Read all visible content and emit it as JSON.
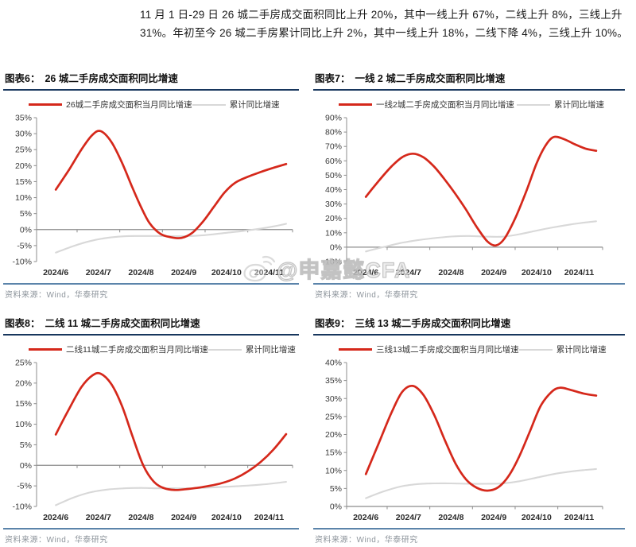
{
  "intro": {
    "text": "11 月 1 日-29 日 26 城二手房成交面积同比上升 20%，其中一线上升 67%，二线上升 8%，三线上升 31%。年初至今 26 城二手房累计同比上升 2%，其中一线上升 18%，二线下降 4%，三线上升 10%。"
  },
  "watermark": {
    "text": "@申嘉懿CFA",
    "icon": "weibo-icon"
  },
  "source_label": "资料来源：Wind，华泰研究",
  "colors": {
    "red": "#d5281b",
    "gray": "#d8d8d8",
    "navy": "#17365d",
    "divider": "#5b84aa",
    "srcgray": "#8e959c",
    "axis": "#8c8c8c",
    "tick_label": "#3a3a3a",
    "x_label": "#2b2b2b"
  },
  "charts": [
    {
      "tag": "图表6：",
      "title": "26 城二手房成交面积同比增速",
      "legend_monthly": "26城二手房成交面积当月同比增速",
      "legend_cumulative": "累计同比增速",
      "chart_data": {
        "type": "line",
        "x_categories": [
          "2024/6",
          "2024/7",
          "2024/8",
          "2024/9",
          "2024/10",
          "2024/11"
        ],
        "ylim": [
          -10,
          35
        ],
        "y_step": 5,
        "y_unit": "%",
        "grid": false,
        "legend_position": "top",
        "series": [
          {
            "name": "26城二手房成交面积当月同比增速",
            "color_key": "red",
            "points": [
              [
                6,
                12.5
              ],
              [
                6.3,
                18.5
              ],
              [
                6.6,
                25
              ],
              [
                6.85,
                29.5
              ],
              [
                7.05,
                30.8
              ],
              [
                7.3,
                27.5
              ],
              [
                7.55,
                21
              ],
              [
                7.8,
                13
              ],
              [
                8.0,
                7
              ],
              [
                8.2,
                2
              ],
              [
                8.45,
                -1.3
              ],
              [
                8.7,
                -2.4
              ],
              [
                8.95,
                -2.6
              ],
              [
                9.2,
                -1
              ],
              [
                9.45,
                2.5
              ],
              [
                9.7,
                7
              ],
              [
                9.95,
                11.5
              ],
              [
                10.2,
                14.6
              ],
              [
                10.5,
                16.5
              ],
              [
                10.8,
                18
              ],
              [
                11.1,
                19.3
              ],
              [
                11.4,
                20.5
              ]
            ]
          },
          {
            "name": "累计同比增速",
            "color_key": "gray",
            "points": [
              [
                6,
                -7.2
              ],
              [
                6.4,
                -5.2
              ],
              [
                6.8,
                -3.6
              ],
              [
                7.2,
                -2.6
              ],
              [
                7.6,
                -2.1
              ],
              [
                8,
                -2
              ],
              [
                8.4,
                -2
              ],
              [
                8.8,
                -2.1
              ],
              [
                9.2,
                -2
              ],
              [
                9.6,
                -1.6
              ],
              [
                10,
                -1
              ],
              [
                10.4,
                -0.4
              ],
              [
                10.8,
                0.3
              ],
              [
                11.1,
                1
              ],
              [
                11.4,
                1.8
              ]
            ]
          }
        ]
      }
    },
    {
      "tag": "图表7：",
      "title": "一线 2 城二手房成交面积同比增速",
      "legend_monthly": "一线2城二手房成交面积当月同比增速",
      "legend_cumulative": "累计同比增速",
      "chart_data": {
        "type": "line",
        "x_categories": [
          "2024/6",
          "2024/7",
          "2024/8",
          "2024/9",
          "2024/10",
          "2024/11"
        ],
        "ylim": [
          -10,
          90
        ],
        "y_step": 10,
        "y_unit": "%",
        "grid": false,
        "legend_position": "top",
        "series": [
          {
            "name": "一线2城二手房成交面积当月同比增速",
            "color_key": "red",
            "points": [
              [
                6,
                35
              ],
              [
                6.3,
                46
              ],
              [
                6.6,
                56
              ],
              [
                6.85,
                62.5
              ],
              [
                7.1,
                65
              ],
              [
                7.35,
                62.5
              ],
              [
                7.6,
                56
              ],
              [
                7.85,
                47
              ],
              [
                8.1,
                37
              ],
              [
                8.35,
                26
              ],
              [
                8.6,
                14
              ],
              [
                8.85,
                4
              ],
              [
                9.05,
                1.2
              ],
              [
                9.25,
                6
              ],
              [
                9.5,
                20
              ],
              [
                9.75,
                38
              ],
              [
                10,
                58
              ],
              [
                10.2,
                70
              ],
              [
                10.4,
                76.5
              ],
              [
                10.65,
                75
              ],
              [
                10.9,
                71.5
              ],
              [
                11.15,
                68.5
              ],
              [
                11.4,
                67
              ]
            ]
          },
          {
            "name": "累计同比增速",
            "color_key": "gray",
            "points": [
              [
                6,
                -3
              ],
              [
                6.4,
                0
              ],
              [
                6.8,
                2.8
              ],
              [
                7.2,
                4.8
              ],
              [
                7.6,
                6.3
              ],
              [
                8,
                7.4
              ],
              [
                8.4,
                7.8
              ],
              [
                8.8,
                7.4
              ],
              [
                9.2,
                7.3
              ],
              [
                9.6,
                9
              ],
              [
                10,
                11.5
              ],
              [
                10.4,
                13.8
              ],
              [
                10.8,
                15.8
              ],
              [
                11.1,
                17
              ],
              [
                11.4,
                18
              ]
            ]
          }
        ]
      }
    },
    {
      "tag": "图表8：",
      "title": "二线 11 城二手房成交面积同比增速",
      "legend_monthly": "二线11城二手房成交面积当月同比增速",
      "legend_cumulative": "累计同比增速",
      "chart_data": {
        "type": "line",
        "x_categories": [
          "2024/6",
          "2024/7",
          "2024/8",
          "2024/9",
          "2024/10",
          "2024/11"
        ],
        "ylim": [
          -10,
          25
        ],
        "y_step": 5,
        "y_unit": "%",
        "grid": false,
        "legend_position": "top",
        "series": [
          {
            "name": "二线11城二手房成交面积当月同比增速",
            "color_key": "red",
            "points": [
              [
                6,
                7.5
              ],
              [
                6.3,
                13.5
              ],
              [
                6.6,
                19
              ],
              [
                6.85,
                21.8
              ],
              [
                7.05,
                22.3
              ],
              [
                7.3,
                19.8
              ],
              [
                7.55,
                14.5
              ],
              [
                7.8,
                7
              ],
              [
                8.05,
                0
              ],
              [
                8.3,
                -4
              ],
              [
                8.55,
                -5.6
              ],
              [
                8.8,
                -6
              ],
              [
                9.05,
                -5.8
              ],
              [
                9.3,
                -5.5
              ],
              [
                9.6,
                -5
              ],
              [
                9.9,
                -4.3
              ],
              [
                10.2,
                -3.2
              ],
              [
                10.5,
                -1.5
              ],
              [
                10.8,
                0.8
              ],
              [
                11.1,
                3.8
              ],
              [
                11.4,
                7.6
              ]
            ]
          },
          {
            "name": "累计同比增速",
            "color_key": "gray",
            "points": [
              [
                6,
                -9.7
              ],
              [
                6.4,
                -7.9
              ],
              [
                6.8,
                -6.6
              ],
              [
                7.2,
                -5.9
              ],
              [
                7.6,
                -5.6
              ],
              [
                8,
                -5.5
              ],
              [
                8.4,
                -5.6
              ],
              [
                8.8,
                -5.6
              ],
              [
                9.2,
                -5.6
              ],
              [
                9.6,
                -5.4
              ],
              [
                10,
                -5.2
              ],
              [
                10.4,
                -5
              ],
              [
                10.8,
                -4.7
              ],
              [
                11.1,
                -4.4
              ],
              [
                11.4,
                -4
              ]
            ]
          }
        ]
      }
    },
    {
      "tag": "图表9：",
      "title": "三线 13 城二手房成交面积同比增速",
      "legend_monthly": "三线13城二手房成交面积当月同比增速",
      "legend_cumulative": "累计同比增速",
      "chart_data": {
        "type": "line",
        "x_categories": [
          "2024/6",
          "2024/7",
          "2024/8",
          "2024/9",
          "2024/10",
          "2024/11"
        ],
        "ylim": [
          0,
          40
        ],
        "y_step": 5,
        "y_unit": "%",
        "grid": false,
        "legend_position": "top",
        "series": [
          {
            "name": "三线13城二手房成交面积当月同比增速",
            "color_key": "red",
            "points": [
              [
                6,
                9
              ],
              [
                6.3,
                17.5
              ],
              [
                6.6,
                26
              ],
              [
                6.85,
                31.8
              ],
              [
                7.1,
                33.5
              ],
              [
                7.35,
                31
              ],
              [
                7.6,
                25.5
              ],
              [
                7.85,
                18.5
              ],
              [
                8.1,
                12
              ],
              [
                8.35,
                7.5
              ],
              [
                8.6,
                5.2
              ],
              [
                8.85,
                4.4
              ],
              [
                9.1,
                5.3
              ],
              [
                9.35,
                8.5
              ],
              [
                9.6,
                14
              ],
              [
                9.85,
                21
              ],
              [
                10.1,
                28
              ],
              [
                10.35,
                31.8
              ],
              [
                10.55,
                33
              ],
              [
                10.8,
                32.4
              ],
              [
                11.1,
                31.4
              ],
              [
                11.4,
                30.8
              ]
            ]
          },
          {
            "name": "累计同比增速",
            "color_key": "gray",
            "points": [
              [
                6,
                2.3
              ],
              [
                6.4,
                4.1
              ],
              [
                6.8,
                5.5
              ],
              [
                7.2,
                6.2
              ],
              [
                7.6,
                6.4
              ],
              [
                8,
                6.4
              ],
              [
                8.4,
                6.3
              ],
              [
                8.8,
                6.3
              ],
              [
                9.2,
                6.4
              ],
              [
                9.6,
                7
              ],
              [
                10,
                8
              ],
              [
                10.4,
                9
              ],
              [
                10.8,
                9.7
              ],
              [
                11.1,
                10.1
              ],
              [
                11.4,
                10.4
              ]
            ]
          }
        ]
      }
    }
  ]
}
